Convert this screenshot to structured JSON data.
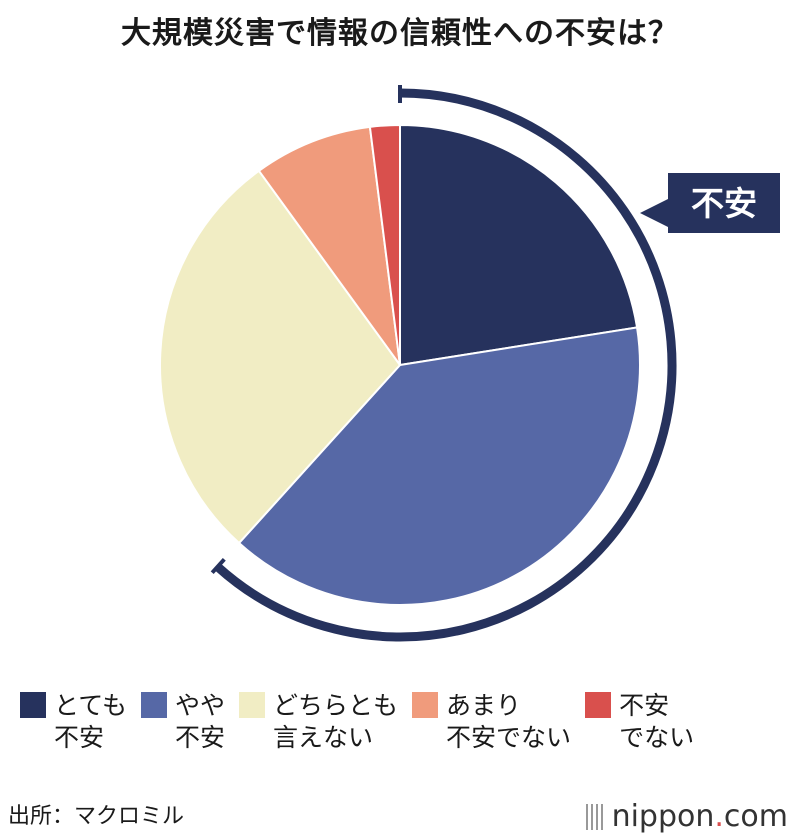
{
  "title": "大規模災害で情報の信頼性への不安は？",
  "source": "出所：マクロミル",
  "logo": {
    "name": "nippon",
    "dot": ".",
    "tld": "com"
  },
  "chart_data": {
    "type": "pie",
    "title": "大規模災害で情報の信頼性への不安は？",
    "categories": [
      "とても不安",
      "やや不安",
      "どちらとも言えない",
      "あまり不安でない",
      "不安でない"
    ],
    "values": [
      22.5,
      39.2,
      28.3,
      8.0,
      2.0
    ],
    "colors": [
      "#26325d",
      "#5668a6",
      "#f1edc4",
      "#f09b7c",
      "#d9504d"
    ],
    "annotation": {
      "label": "不安",
      "covers": [
        "とても不安",
        "やや不安"
      ]
    }
  },
  "legend": [
    {
      "label": "とても\n不安",
      "color": "#26325d"
    },
    {
      "label": "やや\n不安",
      "color": "#5668a6"
    },
    {
      "label": "どちらとも\n言えない",
      "color": "#f1edc4"
    },
    {
      "label": "あまり\n不安でない",
      "color": "#f09b7c"
    },
    {
      "label": "不安\nでない",
      "color": "#d9504d"
    }
  ]
}
